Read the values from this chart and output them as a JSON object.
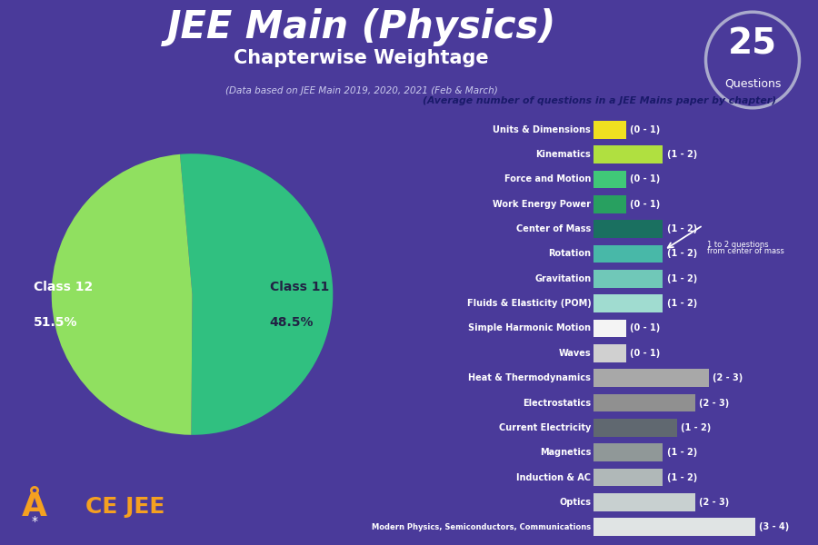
{
  "title_main": "JEE Main (Physics)",
  "title_sub": "Chapterwise Weightage",
  "title_data": "(Data based on JEE Main 2019, 2020, 2021 (Feb & March)",
  "bg_color": "#4a3a9a",
  "bg_top_color": "#5a4aaa",
  "title_color": "#ffffff",
  "highlight_box_text": "(Average number of questions in a JEE Mains paper by chapter)",
  "highlight_box_color": "#f5c518",
  "highlight_text_color": "#1a1a6a",
  "badge_number": "25",
  "badge_text": "Questions",
  "pie_class11": 48.5,
  "pie_class12": 51.5,
  "pie_color_class11": "#90e060",
  "pie_color_class12": "#30c080",
  "pie_label_class11": "Class 11",
  "pie_label_class11_pct": "48.5%",
  "pie_label_class12": "Class 12",
  "pie_label_class12_pct": "51.5%",
  "categories": [
    "Units & Dimensions",
    "Kinematics",
    "Force and Motion",
    "Work Energy Power",
    "Center of Mass",
    "Rotation",
    "Gravitation",
    "Fluids & Elasticity (POM)",
    "Simple Harmonic Motion",
    "Waves",
    "Heat & Thermodynamics",
    "Electrostatics",
    "Current Electricity",
    "Magnetics",
    "Induction & AC",
    "Optics",
    "Modern Physics, Semiconductors, Communications"
  ],
  "values": [
    0.7,
    1.5,
    0.7,
    0.7,
    1.5,
    1.5,
    1.5,
    1.5,
    0.7,
    0.7,
    2.5,
    2.2,
    1.8,
    1.5,
    1.5,
    2.2,
    3.5
  ],
  "labels": [
    "(0 - 1)",
    "(1 - 2)",
    "(0 - 1)",
    "(0 - 1)",
    "(1 - 2)",
    "(1 - 2)",
    "(1 - 2)",
    "(1 - 2)",
    "(0 - 1)",
    "(0 - 1)",
    "(2 - 3)",
    "(2 - 3)",
    "(1 - 2)",
    "(1 - 2)",
    "(1 - 2)",
    "(2 - 3)",
    "(3 - 4)"
  ],
  "bar_colors": [
    "#f0e020",
    "#b0e040",
    "#40c878",
    "#28a060",
    "#1a7060",
    "#48b8a8",
    "#70c8b8",
    "#a0dcd0",
    "#f4f4f4",
    "#d0d0d0",
    "#a8a8a8",
    "#909090",
    "#606870",
    "#909898",
    "#b0b8b8",
    "#c8d0d0",
    "#e0e4e4"
  ],
  "annotation_text1": "1 to 2 questions",
  "annotation_text2": "from center of mass",
  "logo_color": "#f5a020"
}
